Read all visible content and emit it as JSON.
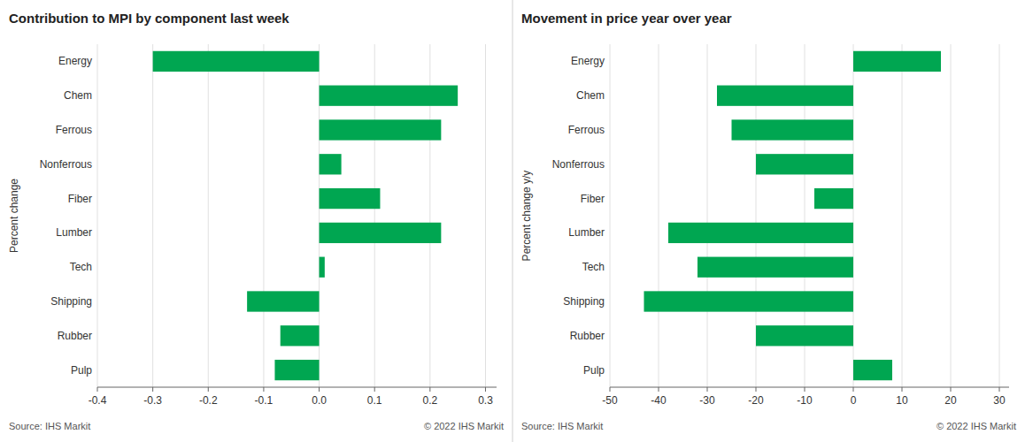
{
  "chart_data": [
    {
      "type": "bar",
      "orientation": "horizontal",
      "title": "Contribution to MPI by component last week",
      "ylabel": "Percent change",
      "categories": [
        "Energy",
        "Chem",
        "Ferrous",
        "Nonferrous",
        "Fiber",
        "Lumber",
        "Tech",
        "Shipping",
        "Rubber",
        "Pulp"
      ],
      "values": [
        -0.3,
        0.25,
        0.22,
        0.04,
        0.11,
        0.22,
        0.01,
        -0.13,
        -0.07,
        -0.08
      ],
      "color": "#00A651",
      "xlim": [
        -0.4,
        0.32
      ],
      "xticks": [
        -0.4,
        -0.3,
        -0.2,
        -0.1,
        {
          "value": 0,
          "label": "0.0"
        },
        0.1,
        0.2,
        0.3
      ],
      "grid": true,
      "annotations": [
        "Source:  IHS Markit",
        "© 2022  IHS Markit"
      ]
    },
    {
      "type": "bar",
      "orientation": "horizontal",
      "title": "Movement in price year over year",
      "ylabel": "Percent change y/y",
      "categories": [
        "Energy",
        "Chem",
        "Ferrous",
        "Nonferrous",
        "Fiber",
        "Lumber",
        "Tech",
        "Shipping",
        "Rubber",
        "Pulp"
      ],
      "values": [
        18,
        -28,
        -25,
        -20,
        -8,
        -38,
        -32,
        -43,
        -20,
        8
      ],
      "color": "#00A651",
      "xlim": [
        -50,
        32
      ],
      "xticks": [
        -50,
        -40,
        -30,
        -20,
        -10,
        0,
        10,
        20,
        30
      ],
      "grid": true,
      "annotations": [
        "Source:  IHS Markit",
        "© 2022  IHS Markit"
      ]
    }
  ]
}
